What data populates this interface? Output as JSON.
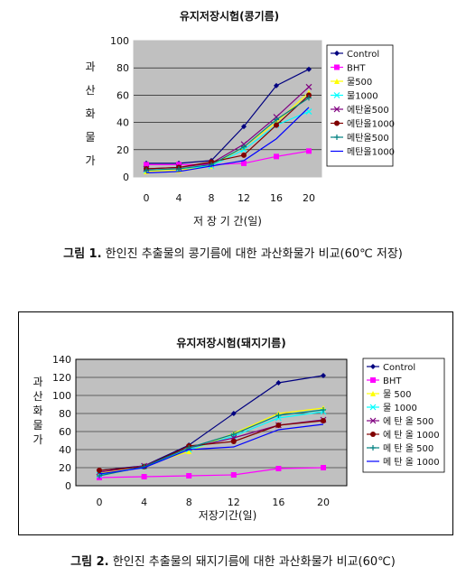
{
  "chart_data": [
    {
      "type": "line",
      "title": "유지저장시험(콩기름)",
      "xlabel": "저 장 기 간(일)",
      "ylabel": "과산화물가",
      "x": [
        0,
        4,
        8,
        12,
        16,
        20
      ],
      "ylim": [
        0,
        100
      ],
      "yticks": [
        0,
        20,
        40,
        60,
        80,
        100
      ],
      "grid": true,
      "legend_position": "right",
      "series": [
        {
          "name": "Control",
          "color": "#000080",
          "marker": "diamond",
          "values": [
            10,
            10,
            12,
            37,
            67,
            79
          ]
        },
        {
          "name": "BHT",
          "color": "#ff00ff",
          "marker": "square",
          "values": [
            9,
            9,
            9,
            10,
            15,
            19
          ]
        },
        {
          "name": "물500",
          "color": "#ffff00",
          "marker": "triangle",
          "values": [
            4,
            5,
            8,
            22,
            40,
            62
          ]
        },
        {
          "name": "물1000",
          "color": "#00ffff",
          "marker": "x",
          "values": [
            5,
            6,
            8,
            20,
            38,
            48
          ]
        },
        {
          "name": "에탄올500",
          "color": "#800080",
          "marker": "x",
          "values": [
            6,
            7,
            10,
            24,
            44,
            66
          ]
        },
        {
          "name": "에탄올1000",
          "color": "#800000",
          "marker": "circle",
          "values": [
            6,
            7,
            11,
            16,
            38,
            60
          ]
        },
        {
          "name": "메탄올500",
          "color": "#008080",
          "marker": "plus",
          "values": [
            5,
            6,
            9,
            22,
            42,
            58
          ]
        },
        {
          "name": "메탄올1000",
          "color": "#0000ff",
          "marker": "none",
          "values": [
            3,
            4,
            8,
            12,
            28,
            51
          ]
        }
      ]
    },
    {
      "type": "line",
      "title": "유지저장시험(돼지기름)",
      "xlabel": "저장기간(일)",
      "ylabel": "과산화물가",
      "x": [
        0,
        4,
        8,
        12,
        16,
        20
      ],
      "ylim": [
        0,
        140
      ],
      "yticks": [
        0,
        20,
        40,
        60,
        80,
        100,
        120,
        140
      ],
      "grid": true,
      "legend_position": "right",
      "series": [
        {
          "name": "Control",
          "color": "#000080",
          "marker": "diamond",
          "values": [
            17,
            22,
            45,
            80,
            114,
            122
          ]
        },
        {
          "name": "BHT",
          "color": "#ff00ff",
          "marker": "square",
          "values": [
            9,
            10,
            11,
            12,
            19,
            20
          ]
        },
        {
          "name": "물 500",
          "color": "#ffff00",
          "marker": "triangle",
          "values": [
            14,
            22,
            38,
            58,
            80,
            86
          ]
        },
        {
          "name": "물 1000",
          "color": "#00ffff",
          "marker": "x",
          "values": [
            12,
            21,
            40,
            55,
            75,
            82
          ]
        },
        {
          "name": "에 탄 올 500",
          "color": "#800080",
          "marker": "x",
          "values": [
            15,
            22,
            42,
            53,
            67,
            73
          ]
        },
        {
          "name": "에 탄 올 1000",
          "color": "#800000",
          "marker": "circle",
          "values": [
            17,
            21,
            44,
            49,
            67,
            72
          ]
        },
        {
          "name": "메 탄 올 500",
          "color": "#008080",
          "marker": "plus",
          "values": [
            11,
            21,
            42,
            57,
            78,
            84
          ]
        },
        {
          "name": "메 탄 올 1000",
          "color": "#0000ff",
          "marker": "none",
          "values": [
            13,
            20,
            40,
            43,
            62,
            68
          ]
        }
      ]
    }
  ],
  "captions": [
    {
      "label": "그림 1.",
      "text": " 한인진 추출물의 콩기름에 대한 과산화물가 비교(60℃ 저장)"
    },
    {
      "label": "그림 2.",
      "text": " 한인진 추출물의 돼지기름에 대한 과산화물가 비교(60℃)"
    }
  ]
}
